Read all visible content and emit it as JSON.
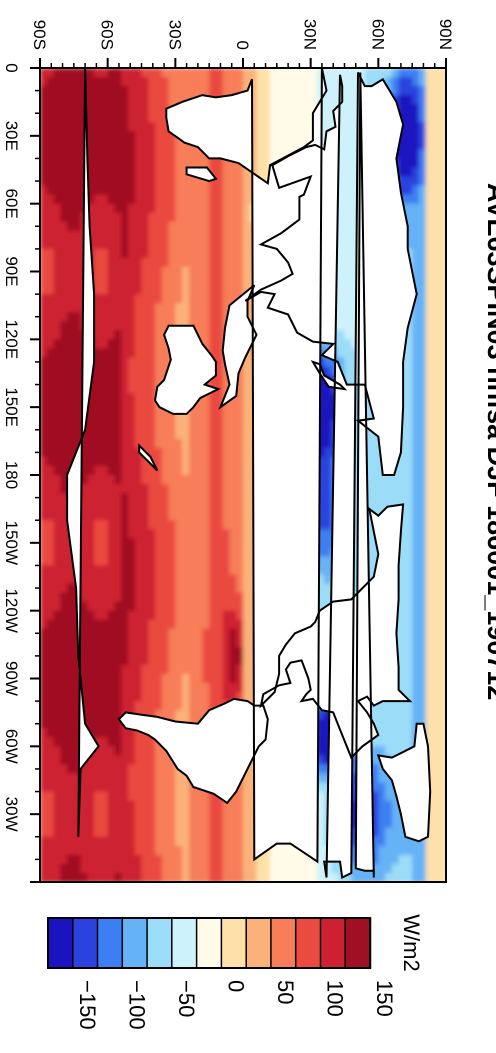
{
  "title": "AVE63SPIN03 nhfsa DJF 186001_190712",
  "colorbar": {
    "units": "W/m2",
    "tick_labels": [
      "-150",
      "-100",
      "-50",
      "0",
      "50",
      "100",
      "150"
    ],
    "colors": [
      "#1b12c0",
      "#2b42de",
      "#3d7ff2",
      "#66b2f6",
      "#9bdcf8",
      "#cdf2fb",
      "#fffbe8",
      "#fde1a8",
      "#fbb27a",
      "#f77e59",
      "#ea4a40",
      "#cd2030",
      "#a01024"
    ]
  },
  "map": {
    "lon_labels": [
      "0",
      "30E",
      "60E",
      "90E",
      "120E",
      "150E",
      "180",
      "150W",
      "120W",
      "90W",
      "60W",
      "30W"
    ],
    "lat_labels": [
      "90S",
      "60S",
      "30S",
      "0",
      "30N",
      "60N",
      "90N"
    ],
    "projection": "cylindrical equidistant (rotated 90° clockwise on page)",
    "field": "net surface heat flux, DJF mean"
  }
}
